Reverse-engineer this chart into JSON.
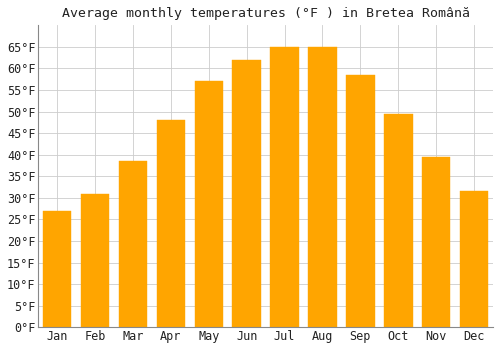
{
  "title": "Average monthly temperatures (°F ) in Bretea Română",
  "months": [
    "Jan",
    "Feb",
    "Mar",
    "Apr",
    "May",
    "Jun",
    "Jul",
    "Aug",
    "Sep",
    "Oct",
    "Nov",
    "Dec"
  ],
  "values": [
    27,
    31,
    38.5,
    48,
    57,
    62,
    65,
    65,
    58.5,
    49.5,
    39.5,
    31.5
  ],
  "bar_color": "#FFA500",
  "bar_edge_color": "#FFA500",
  "background_color": "#FFFFFF",
  "grid_color": "#CCCCCC",
  "text_color": "#222222",
  "ylim": [
    0,
    70
  ],
  "yticks": [
    0,
    5,
    10,
    15,
    20,
    25,
    30,
    35,
    40,
    45,
    50,
    55,
    60,
    65
  ],
  "title_fontsize": 9.5,
  "tick_fontsize": 8.5,
  "bar_width": 0.75
}
